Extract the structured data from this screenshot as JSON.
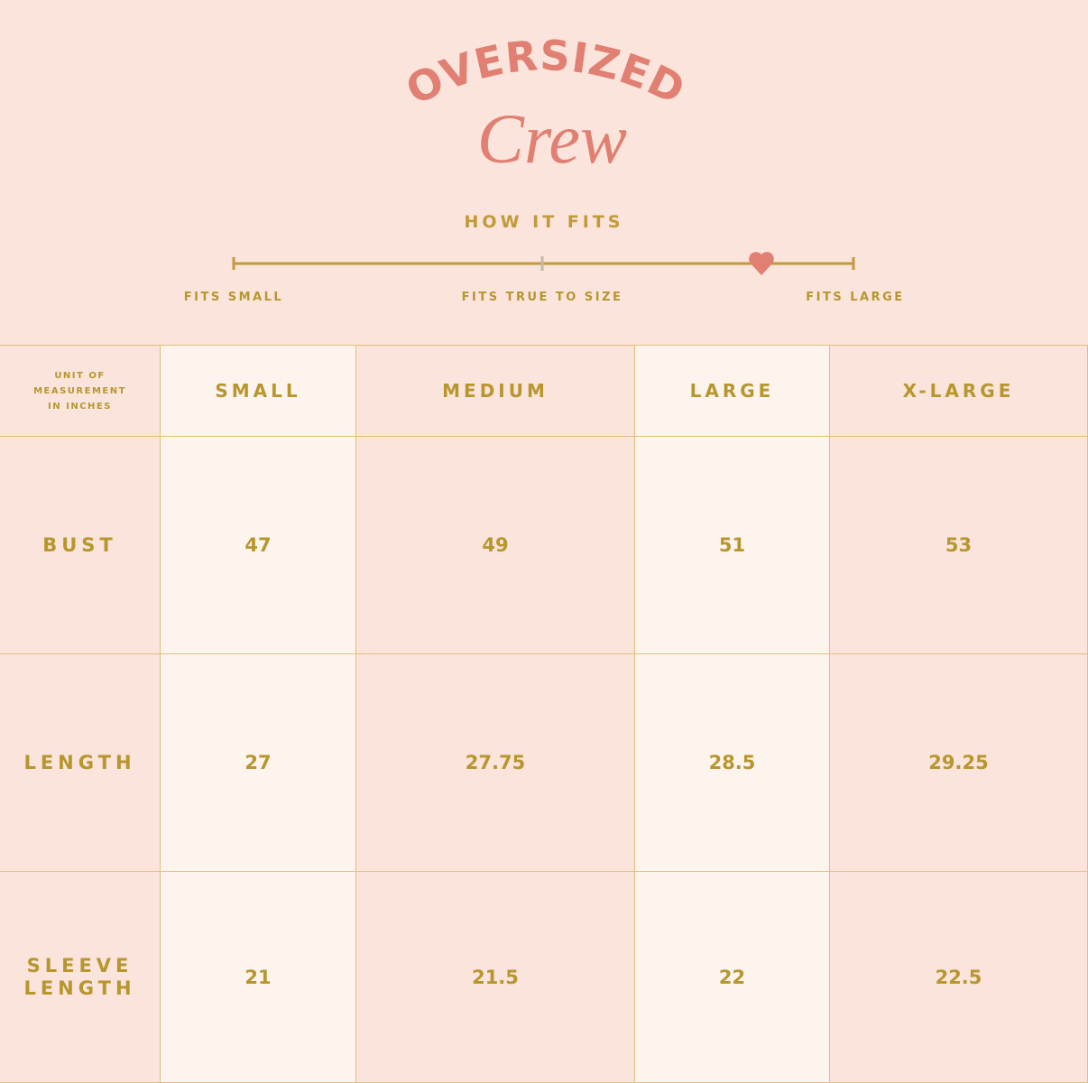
{
  "header": {
    "title": "OVERSIZED",
    "subtitle": "Crew"
  },
  "fit": {
    "heading": "HOW IT FITS",
    "labels": [
      "FITS SMALL",
      "FITS TRUE TO SIZE",
      "FITS LARGE"
    ]
  },
  "table": {
    "corner": [
      "UNIT OF",
      "MEASUREMENT",
      "IN INCHES"
    ],
    "columns": [
      "SMALL",
      "MEDIUM",
      "LARGE",
      "X-LARGE"
    ],
    "rows": [
      {
        "label": "BUST",
        "values": [
          47,
          49,
          51,
          53
        ]
      },
      {
        "label": "LENGTH",
        "values": [
          27,
          27.75,
          28.5,
          29.25
        ]
      },
      {
        "label": "SLEEVE LENGTH",
        "values": [
          21,
          21.5,
          22,
          22.5
        ]
      }
    ]
  }
}
